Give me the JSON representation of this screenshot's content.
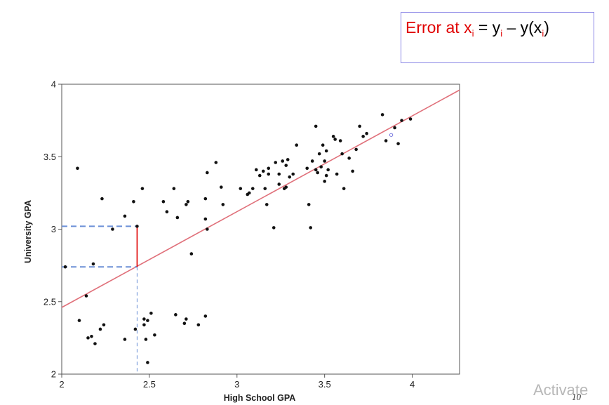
{
  "annotation": {
    "error_prefix": "Error at x",
    "error_sub": "i",
    "error_eq": " = y",
    "error_sub2": "i",
    "error_mid": " – y(x",
    "error_sub3": "i",
    "error_end": ")"
  },
  "watermark": "Activate",
  "slide_number": "10",
  "chart_data": {
    "type": "scatter",
    "xlabel": "High School GPA",
    "ylabel": "University GPA",
    "xlim": [
      2.0,
      4.27
    ],
    "ylim": [
      2.0,
      4.0
    ],
    "xticks": [
      {
        "value": 2,
        "label": "2"
      },
      {
        "value": 2.5,
        "label": "2.5"
      },
      {
        "value": 3,
        "label": "3"
      },
      {
        "value": 3.5,
        "label": "3.5"
      },
      {
        "value": 4,
        "label": "4"
      }
    ],
    "yticks": [
      {
        "value": 2,
        "label": "2"
      },
      {
        "value": 2.5,
        "label": "2.5"
      },
      {
        "value": 3,
        "label": "3"
      },
      {
        "value": 3.5,
        "label": "3.5"
      },
      {
        "value": 4,
        "label": "4"
      }
    ],
    "grid": false,
    "regression_line": {
      "x0": 2.0,
      "y0": 2.46,
      "x1": 4.27,
      "y1": 3.96,
      "color": "#e0707a"
    },
    "highlight": {
      "x": 2.43,
      "y_actual": 3.02,
      "y_pred": 2.74,
      "line_color": "#e00000",
      "guide_color": "#6b8fd6"
    },
    "marked_point": {
      "x": 3.88,
      "y": 3.65,
      "color": "#7a7ae0"
    },
    "points_x": [
      2.09,
      2.1,
      2.14,
      2.15,
      2.18,
      2.19,
      2.23,
      2.24,
      2.29,
      2.36,
      2.41,
      2.43,
      2.46,
      2.47,
      2.48,
      2.49,
      2.51,
      2.53,
      2.58,
      2.6,
      2.64,
      2.65,
      2.66,
      2.7,
      2.71,
      2.71,
      2.72,
      2.74,
      2.78,
      2.82,
      2.82,
      2.82,
      2.83,
      2.83,
      2.88,
      2.91,
      2.92,
      3.02,
      3.06,
      3.07,
      3.09,
      3.11,
      3.13,
      3.15,
      3.16,
      3.17,
      3.18,
      3.18,
      3.21,
      3.22,
      3.24,
      3.24,
      3.26,
      3.27,
      3.28,
      3.28,
      3.29,
      3.3,
      3.32,
      3.34,
      3.4,
      3.41,
      3.42,
      3.43,
      3.45,
      3.45,
      3.46,
      3.47,
      3.48,
      3.49,
      3.5,
      3.5,
      3.51,
      3.51,
      3.52,
      3.55,
      3.56,
      3.57,
      3.59,
      3.6,
      3.61,
      3.64,
      3.66,
      3.68,
      3.7,
      3.72,
      3.74,
      3.83,
      3.85,
      3.9,
      3.92,
      3.94,
      3.99,
      2.17,
      2.22,
      2.02,
      2.42,
      2.36,
      2.49,
      2.47
    ],
    "points_y": [
      3.42,
      2.37,
      2.54,
      2.25,
      2.76,
      2.21,
      3.21,
      2.34,
      3.0,
      2.24,
      3.19,
      3.02,
      3.28,
      2.38,
      2.24,
      2.08,
      2.42,
      2.27,
      3.19,
      3.12,
      3.28,
      2.41,
      3.08,
      2.35,
      3.17,
      2.38,
      3.19,
      2.83,
      2.34,
      3.21,
      3.07,
      2.4,
      3.39,
      3.0,
      3.46,
      3.29,
      3.17,
      3.28,
      3.24,
      3.25,
      3.28,
      3.41,
      3.37,
      3.4,
      3.28,
      3.17,
      3.42,
      3.38,
      3.01,
      3.46,
      3.38,
      3.31,
      3.47,
      3.28,
      3.44,
      3.29,
      3.48,
      3.36,
      3.38,
      3.58,
      3.42,
      3.17,
      3.01,
      3.47,
      3.71,
      3.41,
      3.39,
      3.52,
      3.43,
      3.58,
      3.47,
      3.33,
      3.37,
      3.54,
      3.41,
      3.64,
      3.62,
      3.38,
      3.61,
      3.52,
      3.28,
      3.49,
      3.4,
      3.55,
      3.71,
      3.64,
      3.66,
      3.79,
      3.61,
      3.7,
      3.59,
      3.75,
      3.76,
      2.26,
      2.31,
      2.74,
      2.31,
      3.09,
      2.37,
      2.34
    ]
  }
}
